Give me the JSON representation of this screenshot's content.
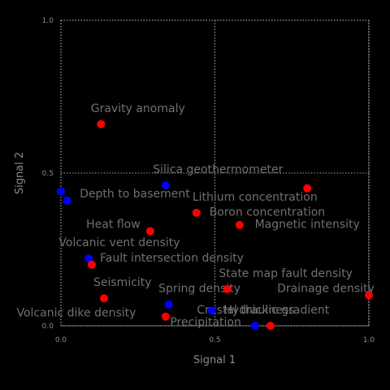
{
  "chart_data": {
    "type": "scatter",
    "xlabel": "Signal 1",
    "ylabel": "Signal 2",
    "xlim": [
      0.0,
      1.0
    ],
    "ylim": [
      0.0,
      1.0
    ],
    "x_ticks": [
      "0.0",
      "0.5",
      "1.0"
    ],
    "y_ticks": [
      "0.0",
      "0.5",
      "1.0"
    ],
    "grid": true,
    "colors": {
      "red": "#ff0000",
      "blue": "#0000ff",
      "background": "#000000",
      "grid": "#cfcfcf",
      "text": "#707070"
    },
    "points": [
      {
        "x": 0.13,
        "y": 0.66,
        "color": "red"
      },
      {
        "x": 0.34,
        "y": 0.46,
        "color": "blue"
      },
      {
        "x": 0.0,
        "y": 0.44,
        "color": "blue"
      },
      {
        "x": 0.02,
        "y": 0.41,
        "color": "blue"
      },
      {
        "x": 0.8,
        "y": 0.45,
        "color": "red"
      },
      {
        "x": 0.44,
        "y": 0.37,
        "color": "red"
      },
      {
        "x": 0.58,
        "y": 0.33,
        "color": "red"
      },
      {
        "x": 0.29,
        "y": 0.31,
        "color": "red"
      },
      {
        "x": 0.09,
        "y": 0.22,
        "color": "blue"
      },
      {
        "x": 0.1,
        "y": 0.2,
        "color": "red"
      },
      {
        "x": 0.54,
        "y": 0.12,
        "color": "red"
      },
      {
        "x": 1.0,
        "y": 0.1,
        "color": "red"
      },
      {
        "x": 0.14,
        "y": 0.09,
        "color": "red"
      },
      {
        "x": 0.35,
        "y": 0.07,
        "color": "blue"
      },
      {
        "x": 0.49,
        "y": 0.05,
        "color": "blue"
      },
      {
        "x": 0.34,
        "y": 0.03,
        "color": "red"
      },
      {
        "x": 0.63,
        "y": 0.0,
        "color": "blue"
      },
      {
        "x": 0.68,
        "y": 0.0,
        "color": "red"
      }
    ],
    "labels": [
      {
        "text": "Gravity anomaly",
        "x": 0.25,
        "y": 0.7
      },
      {
        "text": "Silica geothermometer",
        "x": 0.51,
        "y": 0.5
      },
      {
        "text": "Depth to basement",
        "x": 0.24,
        "y": 0.42
      },
      {
        "text": "Lithium concentration",
        "x": 0.63,
        "y": 0.41
      },
      {
        "text": "Boron concentration",
        "x": 0.67,
        "y": 0.36
      },
      {
        "text": "Magnetic intensity",
        "x": 0.8,
        "y": 0.32
      },
      {
        "text": "Heat flow",
        "x": 0.17,
        "y": 0.32
      },
      {
        "text": "Volcanic vent density",
        "x": 0.19,
        "y": 0.26
      },
      {
        "text": "Fault intersection density",
        "x": 0.36,
        "y": 0.21
      },
      {
        "text": "State map fault density",
        "x": 0.73,
        "y": 0.16
      },
      {
        "text": "Seismicity",
        "x": 0.2,
        "y": 0.13
      },
      {
        "text": "Spring density",
        "x": 0.45,
        "y": 0.11
      },
      {
        "text": "Drainage density",
        "x": 0.86,
        "y": 0.11
      },
      {
        "text": "Crustal thickness",
        "x": 0.6,
        "y": 0.04
      },
      {
        "text": "Hydraulic gradient",
        "x": 0.7,
        "y": 0.04
      },
      {
        "text": "Precipitation",
        "x": 0.47,
        "y": 0.0
      },
      {
        "text": "Volcanic dike density",
        "x": 0.05,
        "y": 0.03
      }
    ]
  }
}
